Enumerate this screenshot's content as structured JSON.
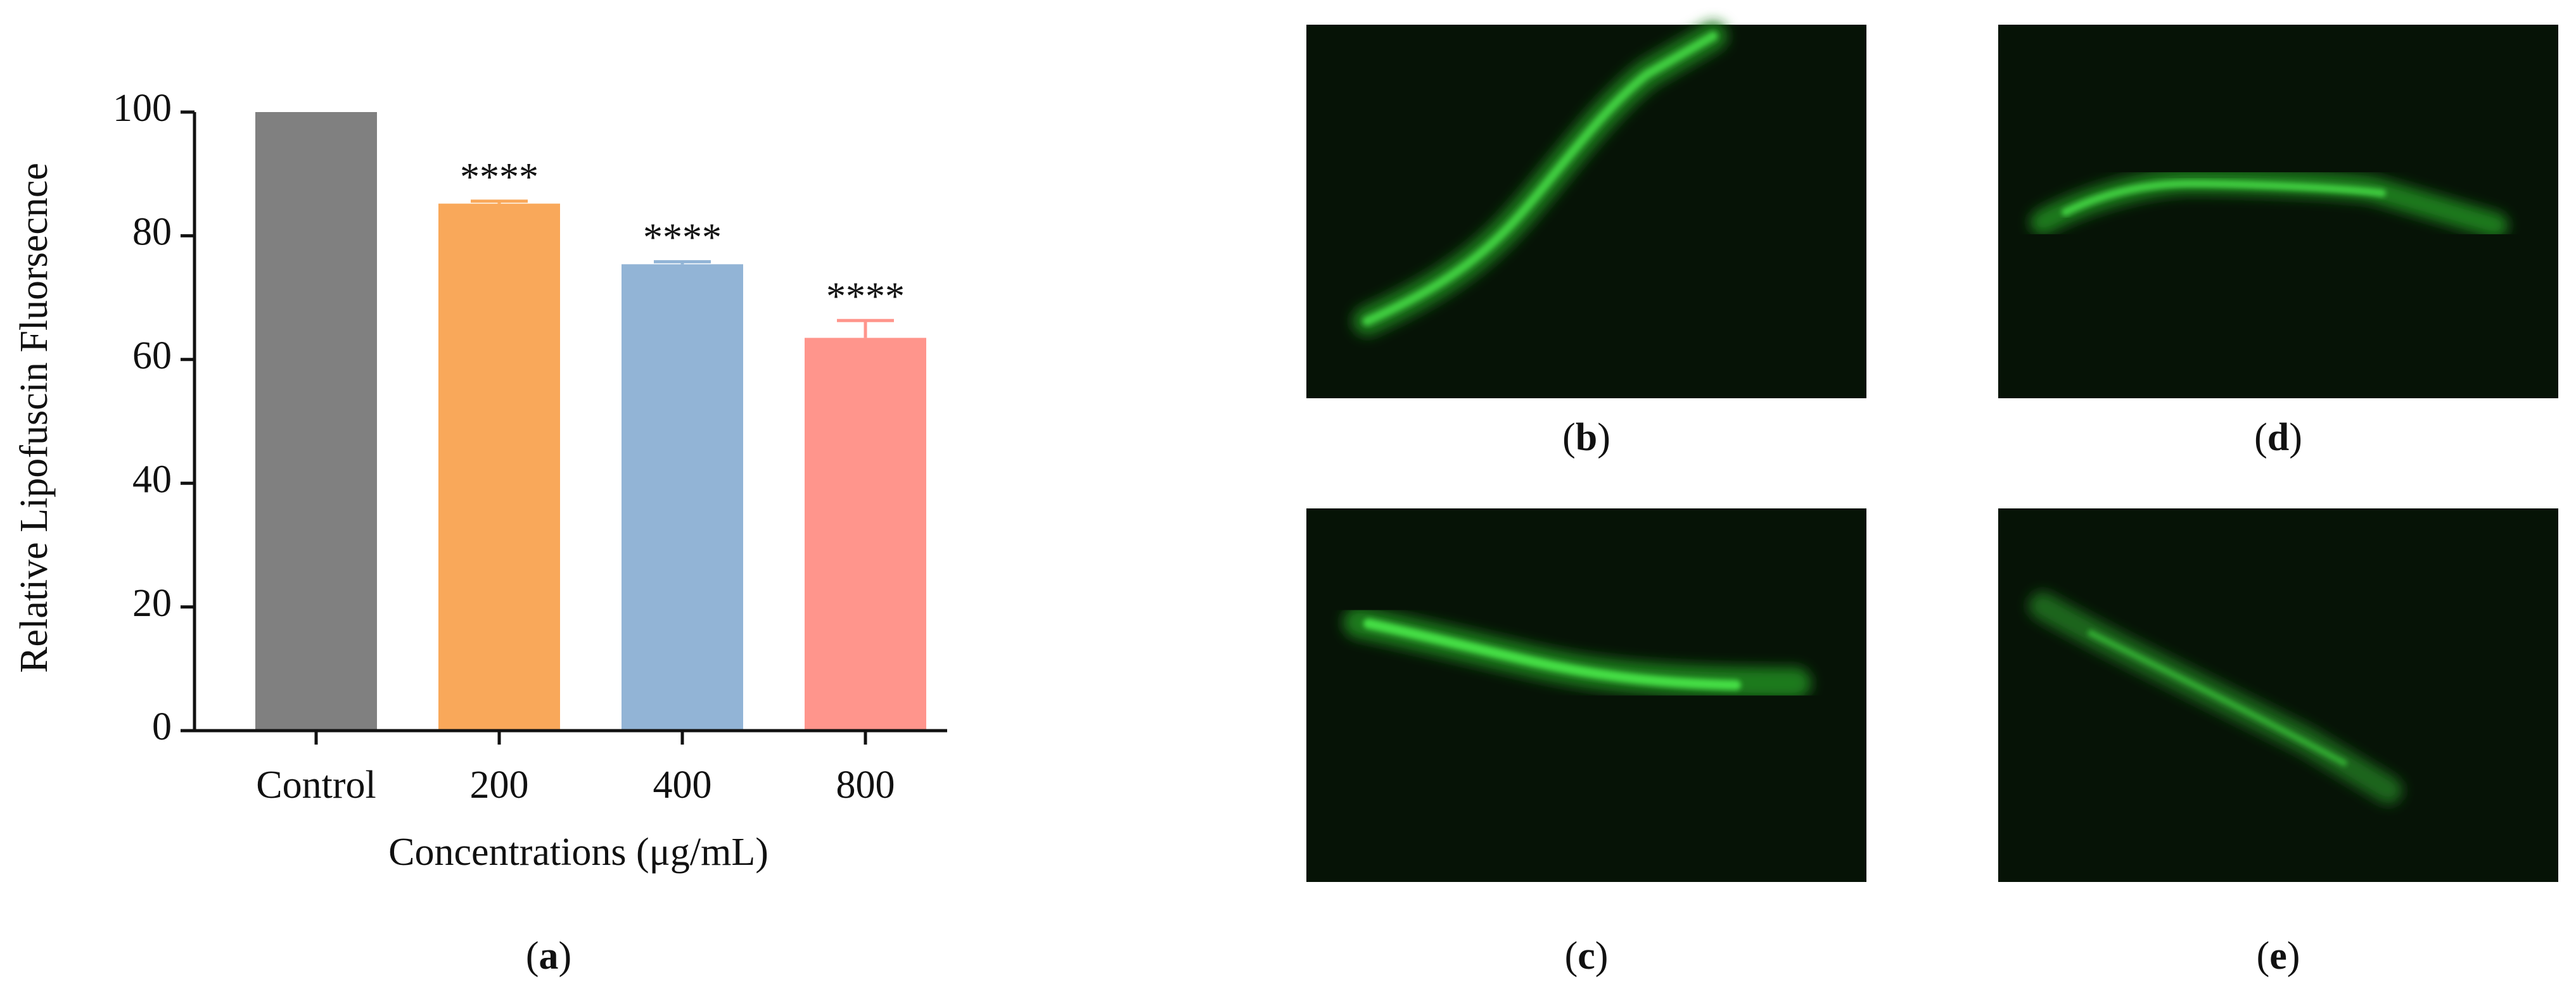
{
  "chart_data": {
    "type": "bar",
    "ylabel": "Relative Lipofuscin Fluorsecnce",
    "xlabel": "Concentrations (μg/mL)",
    "categories": [
      "Control",
      "200",
      "400",
      "800"
    ],
    "values": [
      100,
      85.2,
      75.4,
      63.5
    ],
    "errors": [
      null,
      0.4,
      0.4,
      2.8
    ],
    "colors": [
      "#808080",
      "#f9a85a",
      "#92b4d6",
      "#ff958c"
    ],
    "annotations": [
      null,
      "****",
      "****",
      "****"
    ],
    "ylim": [
      0,
      100
    ],
    "yticks": [
      0,
      20,
      40,
      60,
      80,
      100
    ],
    "panel_label": "(a)"
  },
  "panels": [
    {
      "label": "(b)"
    },
    {
      "label": "(c)"
    },
    {
      "label": "(d)"
    },
    {
      "label": "(e)"
    }
  ]
}
